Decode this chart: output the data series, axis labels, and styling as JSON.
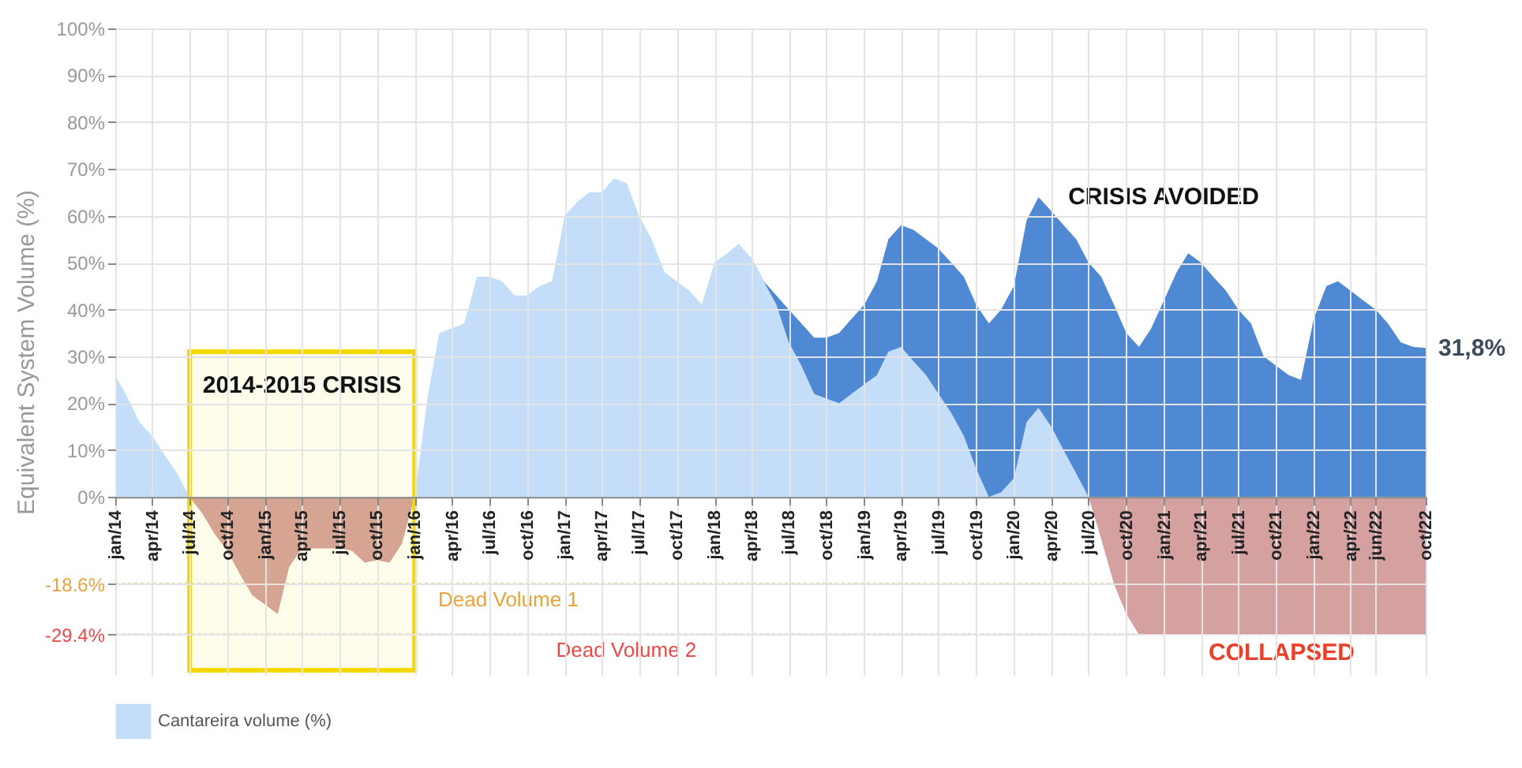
{
  "chart_data": {
    "type": "area",
    "ylabel": "Equivalent System Volume (%)",
    "xlim": [
      "2014-01",
      "2022-10"
    ],
    "ylim": [
      -38,
      100
    ],
    "xticks": [
      {
        "value": "2014-01",
        "label": "jan/14"
      },
      {
        "value": "2014-04",
        "label": "apr/14"
      },
      {
        "value": "2014-07",
        "label": "jul/14"
      },
      {
        "value": "2014-10",
        "label": "oct/14"
      },
      {
        "value": "2015-01",
        "label": "jan/15"
      },
      {
        "value": "2015-04",
        "label": "apr/15"
      },
      {
        "value": "2015-07",
        "label": "jul/15"
      },
      {
        "value": "2015-10",
        "label": "oct/15"
      },
      {
        "value": "2016-01",
        "label": "jan/16"
      },
      {
        "value": "2016-04",
        "label": "apr/16"
      },
      {
        "value": "2016-07",
        "label": "jul/16"
      },
      {
        "value": "2016-10",
        "label": "oct/16"
      },
      {
        "value": "2017-01",
        "label": "jan/17"
      },
      {
        "value": "2017-04",
        "label": "apr/17"
      },
      {
        "value": "2017-07",
        "label": "jul/17"
      },
      {
        "value": "2017-10",
        "label": "oct/17"
      },
      {
        "value": "2018-01",
        "label": "jan/18"
      },
      {
        "value": "2018-04",
        "label": "apr/18"
      },
      {
        "value": "2018-07",
        "label": "jul/18"
      },
      {
        "value": "2018-10",
        "label": "oct/18"
      },
      {
        "value": "2019-01",
        "label": "jan/19"
      },
      {
        "value": "2019-04",
        "label": "apr/19"
      },
      {
        "value": "2019-07",
        "label": "jul/19"
      },
      {
        "value": "2019-10",
        "label": "oct/19"
      },
      {
        "value": "2020-01",
        "label": "jan/20"
      },
      {
        "value": "2020-04",
        "label": "apr/20"
      },
      {
        "value": "2020-07",
        "label": "jul/20"
      },
      {
        "value": "2020-10",
        "label": "oct/20"
      },
      {
        "value": "2021-01",
        "label": "jan/21"
      },
      {
        "value": "2021-04",
        "label": "apr/21"
      },
      {
        "value": "2021-07",
        "label": "jul/21"
      },
      {
        "value": "2021-10",
        "label": "oct/21"
      },
      {
        "value": "2022-01",
        "label": "jan/22"
      },
      {
        "value": "2022-04",
        "label": "apr/22"
      },
      {
        "value": "2022-06",
        "label": "jun/22"
      },
      {
        "value": "2022-10",
        "label": "oct/22"
      }
    ],
    "yticks": [
      {
        "value": -29.4,
        "label": "-29.4%"
      },
      {
        "value": -18.6,
        "label": "-18.6%"
      },
      {
        "value": 0,
        "label": "0%"
      },
      {
        "value": 10,
        "label": "10%"
      },
      {
        "value": 20,
        "label": "20%"
      },
      {
        "value": 30,
        "label": "30%"
      },
      {
        "value": 40,
        "label": "40%"
      },
      {
        "value": 50,
        "label": "50%"
      },
      {
        "value": 60,
        "label": "60%"
      },
      {
        "value": 70,
        "label": "70%"
      },
      {
        "value": 80,
        "label": "80%"
      },
      {
        "value": 90,
        "label": "90%"
      },
      {
        "value": 100,
        "label": "100%"
      }
    ],
    "grid": true,
    "legend": "bottom",
    "series": [
      {
        "color": "#4f88d3",
        "x": [
          "2018-04",
          "2018-05",
          "2018-06",
          "2018-07",
          "2018-08",
          "2018-09",
          "2018-10",
          "2018-11",
          "2018-12",
          "2019-01",
          "2019-02",
          "2019-03",
          "2019-04",
          "2019-05",
          "2019-06",
          "2019-07",
          "2019-08",
          "2019-09",
          "2019-10",
          "2019-11",
          "2019-12",
          "2020-01",
          "2020-02",
          "2020-03",
          "2020-04",
          "2020-05",
          "2020-06",
          "2020-07",
          "2020-08",
          "2020-09",
          "2020-10",
          "2020-11",
          "2020-12",
          "2021-01",
          "2021-02",
          "2021-03",
          "2021-04",
          "2021-05",
          "2021-06",
          "2021-07",
          "2021-08",
          "2021-09",
          "2021-10",
          "2021-11",
          "2021-12",
          "2022-01",
          "2022-02",
          "2022-03",
          "2022-04",
          "2022-05",
          "2022-06",
          "2022-07",
          "2022-08",
          "2022-09",
          "2022-10"
        ],
        "values": [
          51,
          46,
          43,
          40,
          37,
          34,
          34,
          35,
          38,
          41,
          46,
          55,
          58,
          57,
          55,
          53,
          50,
          47,
          41,
          37,
          40,
          45,
          59,
          64,
          61,
          58,
          55,
          50,
          47,
          41,
          35,
          32,
          36,
          42,
          48,
          52,
          50,
          47,
          44,
          40,
          37,
          30,
          28,
          26,
          25,
          38,
          45,
          46,
          44,
          42,
          40,
          37,
          33,
          32,
          31.8
        ]
      },
      {
        "name": "Cantareira volume (%)",
        "color": "#c4def9",
        "x": [
          "2014-01",
          "2014-02",
          "2014-03",
          "2014-04",
          "2014-05",
          "2014-06",
          "2014-07",
          "2016-01",
          "2016-02",
          "2016-03",
          "2016-04",
          "2016-05",
          "2016-06",
          "2016-07",
          "2016-08",
          "2016-09",
          "2016-10",
          "2016-11",
          "2016-12",
          "2017-01",
          "2017-02",
          "2017-03",
          "2017-04",
          "2017-05",
          "2017-06",
          "2017-07",
          "2017-08",
          "2017-09",
          "2017-10",
          "2017-11",
          "2017-12",
          "2018-01",
          "2018-02",
          "2018-03",
          "2018-04",
          "2018-05",
          "2018-06",
          "2018-07",
          "2018-08",
          "2018-09",
          "2018-10",
          "2018-11",
          "2018-12",
          "2019-01",
          "2019-02",
          "2019-03",
          "2019-04",
          "2019-05",
          "2019-06",
          "2019-07",
          "2019-08",
          "2019-09",
          "2019-10",
          "2019-11",
          "2019-12",
          "2020-01",
          "2020-02",
          "2020-03",
          "2020-04",
          "2020-05",
          "2020-06",
          "2020-07"
        ],
        "values": [
          26,
          21,
          16,
          13,
          9,
          5,
          0,
          0,
          21,
          35,
          36,
          37,
          47,
          47,
          46,
          43,
          43,
          45,
          46,
          60,
          63,
          65,
          65,
          68,
          67,
          60,
          55,
          48,
          46,
          44,
          41,
          50,
          52,
          54,
          51,
          46,
          41,
          33,
          28,
          22,
          21,
          20,
          22,
          24,
          26,
          31,
          32,
          29,
          26,
          22,
          18,
          13,
          6,
          0,
          1,
          4,
          16,
          19,
          15,
          10,
          5,
          0
        ]
      },
      {
        "color": "#d4a0a0",
        "x": [
          "2014-07",
          "2014-08",
          "2014-09",
          "2014-10",
          "2014-11",
          "2014-12",
          "2015-01",
          "2015-02",
          "2015-03",
          "2015-04",
          "2015-05",
          "2015-06",
          "2015-07",
          "2015-08",
          "2015-09",
          "2015-10",
          "2015-11",
          "2015-12",
          "2016-01"
        ],
        "values": [
          0,
          -3.5,
          -8,
          -11.5,
          -16.5,
          -21,
          -23,
          -25,
          -15,
          -11,
          -11,
          -11,
          -11,
          -11.5,
          -14,
          -13.5,
          -14,
          -10,
          0
        ]
      },
      {
        "color": "#d4a0a0",
        "x": [
          "2020-07",
          "2020-08",
          "2020-09",
          "2020-10",
          "2020-11",
          "2020-12",
          "2021-01",
          "2021-02",
          "2021-03",
          "2021-04",
          "2021-05",
          "2021-06",
          "2021-07",
          "2021-08",
          "2021-09",
          "2021-10",
          "2021-11",
          "2021-12",
          "2022-01",
          "2022-02",
          "2022-03",
          "2022-04",
          "2022-05",
          "2022-06",
          "2022-07",
          "2022-08",
          "2022-09",
          "2022-10"
        ],
        "values": [
          0,
          -9,
          -18.6,
          -25,
          -29.4,
          -29.4,
          -29.4,
          -29.4,
          -29.4,
          -29.4,
          -29.4,
          -29.4,
          -29.4,
          -29.4,
          -29.4,
          -29.4,
          -29.4,
          -29.4,
          -29.4,
          -29.4,
          -29.4,
          -29.4,
          -29.4,
          -29.4,
          -29.4,
          -29.4,
          -29.4,
          -29.4
        ]
      }
    ],
    "ref_lines": [
      {
        "axis": "y",
        "value": -18.6,
        "label": "Dead Volume 1",
        "color": "#e8a33a",
        "line_style": "dotted"
      },
      {
        "axis": "y",
        "value": -29.4,
        "label": "Dead Volume 2",
        "color": "#e84a4a",
        "line_style": "dotted"
      }
    ],
    "bands": [
      {
        "axis": "x",
        "from": "2014-07",
        "to": "2016-01",
        "label": "2014-2015 CRISIS",
        "color": "#f5d800"
      }
    ],
    "annotations": [
      "CRISIS AVOIDED",
      "COLLAPSED",
      {
        "text": "31,8%",
        "x": "2022-10",
        "y": 31.8
      }
    ]
  }
}
